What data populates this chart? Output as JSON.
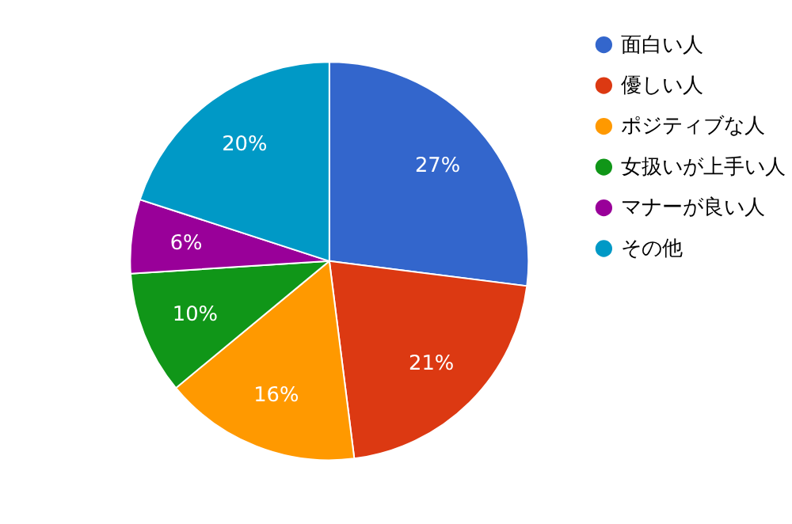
{
  "chart_data": {
    "type": "pie",
    "categories": [
      "面白い人",
      "優しい人",
      "ポジティブな人",
      "女扱いが上手い人",
      "マナーが良い人",
      "その他"
    ],
    "values": [
      27,
      21,
      16,
      10,
      6,
      20
    ],
    "colors": [
      "#3366cc",
      "#dc3912",
      "#ff9900",
      "#109618",
      "#990099",
      "#0099c6"
    ],
    "value_labels": [
      "27%",
      "21%",
      "16%",
      "10%",
      "6%",
      "20%"
    ],
    "legend": "right"
  }
}
